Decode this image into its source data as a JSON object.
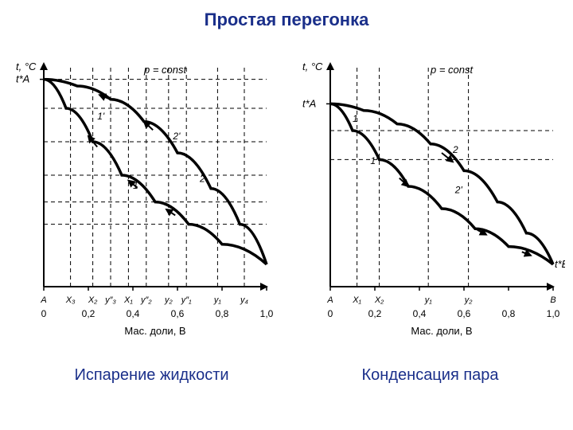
{
  "title": "Простая перегонка",
  "caption_left": "Испарение жидкости",
  "caption_right": "Конденсация пара",
  "colors": {
    "title": "#1a2f8a",
    "caption": "#1a2f8a",
    "axis": "#000000",
    "curve": "#000000",
    "dashed": "#000000",
    "background": "#ffffff"
  },
  "typography": {
    "title_fontsize": 22,
    "title_weight": "bold",
    "caption_fontsize": 20,
    "axis_label_fontsize": 13,
    "tick_fontsize": 12,
    "point_label_fontsize": 12
  },
  "left_chart": {
    "type": "phase-diagram",
    "y_label": "t, °C",
    "y_markers": [
      "t*А"
    ],
    "x_label": "Мас. доли, В",
    "p_const": "p = const",
    "x_ticks": [
      "0",
      "0,2",
      "0,4",
      "0,6",
      "0,8",
      "1,0"
    ],
    "x_range": [
      0,
      1.0
    ],
    "x_tick_labels_below": [
      "А",
      "X₃",
      "X₂",
      "y″₃",
      "X₁",
      "y″₂",
      "y₂",
      "y″₁",
      "y₁",
      "y₄"
    ],
    "x_tick_positions_below": [
      0.0,
      0.12,
      0.22,
      0.3,
      0.38,
      0.46,
      0.56,
      0.64,
      0.78,
      0.9
    ],
    "upper_curve": [
      [
        0.0,
        0.93
      ],
      [
        0.15,
        0.9
      ],
      [
        0.3,
        0.84
      ],
      [
        0.45,
        0.74
      ],
      [
        0.6,
        0.6
      ],
      [
        0.75,
        0.44
      ],
      [
        0.88,
        0.28
      ],
      [
        1.0,
        0.1
      ]
    ],
    "lower_curve": [
      [
        0.0,
        0.93
      ],
      [
        0.1,
        0.8
      ],
      [
        0.22,
        0.65
      ],
      [
        0.35,
        0.5
      ],
      [
        0.5,
        0.38
      ],
      [
        0.65,
        0.28
      ],
      [
        0.8,
        0.19
      ],
      [
        1.0,
        0.1
      ]
    ],
    "point_labels": {
      "2'": [
        0.58,
        0.66
      ],
      "2": [
        0.7,
        0.47
      ],
      "1'": [
        0.24,
        0.75
      ],
      "1": [
        0.4,
        0.44
      ]
    },
    "tie_lines_y": [
      0.93,
      0.8,
      0.65,
      0.5,
      0.38,
      0.28
    ],
    "vertical_drops_x": [
      0.12,
      0.22,
      0.3,
      0.38,
      0.46,
      0.56,
      0.64,
      0.78,
      0.9
    ],
    "arrows": true,
    "curve_width": 3.5,
    "axis_width": 2,
    "dashed_pattern": "5,4"
  },
  "right_chart": {
    "type": "phase-diagram",
    "y_label": "t, °C",
    "y_markers": [
      "t*А",
      "t*В"
    ],
    "x_label": "Мас. доли, В",
    "p_const": "p = const",
    "x_ticks": [
      "0",
      "0,2",
      "0,4",
      "0,6",
      "0,8",
      "1,0"
    ],
    "x_range": [
      0,
      1.0
    ],
    "x_tick_labels_below": [
      "А",
      "X₁",
      "X₂",
      "y₁",
      "y₂",
      "В"
    ],
    "x_tick_positions_below": [
      0.0,
      0.12,
      0.22,
      0.44,
      0.62,
      1.0
    ],
    "upper_curve": [
      [
        0.0,
        0.82
      ],
      [
        0.15,
        0.79
      ],
      [
        0.3,
        0.73
      ],
      [
        0.45,
        0.64
      ],
      [
        0.6,
        0.52
      ],
      [
        0.75,
        0.38
      ],
      [
        0.88,
        0.24
      ],
      [
        1.0,
        0.1
      ]
    ],
    "lower_curve": [
      [
        0.0,
        0.82
      ],
      [
        0.1,
        0.7
      ],
      [
        0.22,
        0.57
      ],
      [
        0.35,
        0.45
      ],
      [
        0.5,
        0.35
      ],
      [
        0.65,
        0.26
      ],
      [
        0.8,
        0.18
      ],
      [
        1.0,
        0.1
      ]
    ],
    "point_labels": {
      "1": [
        0.1,
        0.74
      ],
      "2": [
        0.55,
        0.6
      ],
      "1'": [
        0.18,
        0.55
      ],
      "2'": [
        0.56,
        0.42
      ]
    },
    "tie_lines_y": [
      0.7,
      0.57
    ],
    "vertical_drops_x": [
      0.12,
      0.22,
      0.44,
      0.62
    ],
    "arrows": true,
    "curve_width": 3.5,
    "axis_width": 2,
    "dashed_pattern": "5,4"
  }
}
